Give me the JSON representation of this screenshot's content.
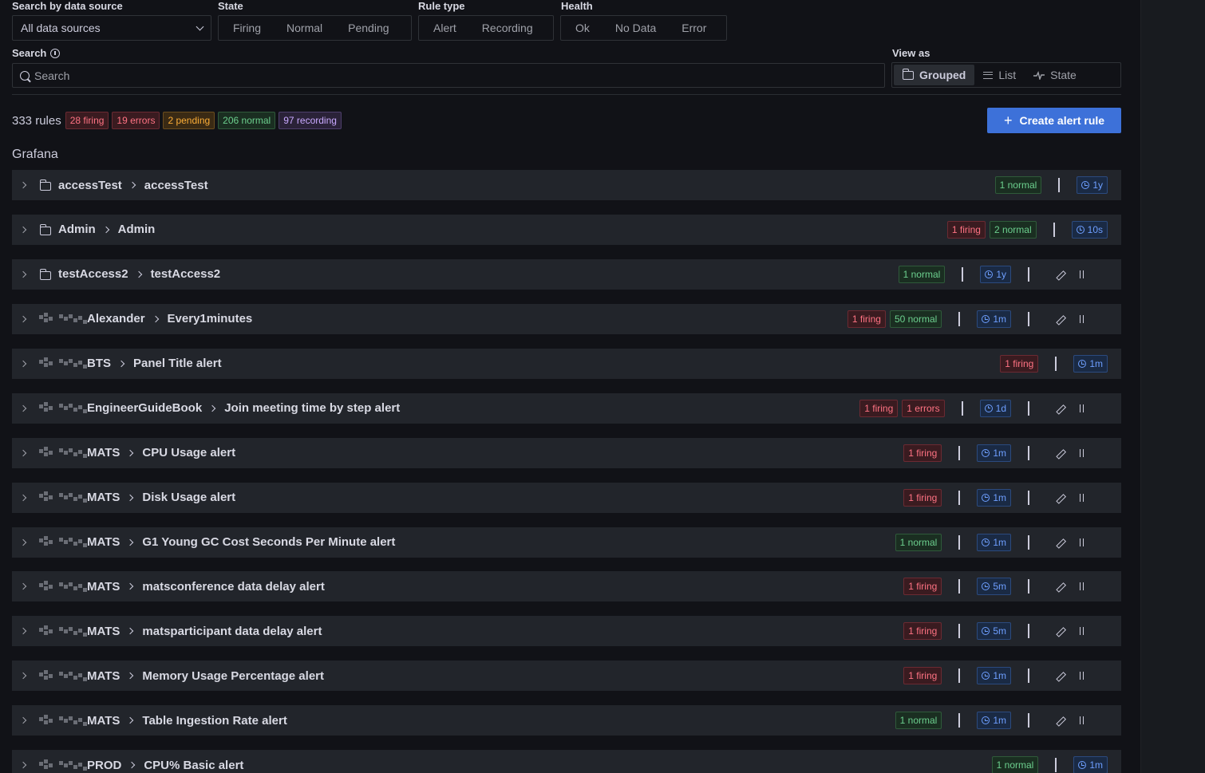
{
  "filters": {
    "datasource_label": "Search by data source",
    "datasource_value": "All data sources",
    "state_label": "State",
    "state_options": [
      "Firing",
      "Normal",
      "Pending"
    ],
    "ruletype_label": "Rule type",
    "ruletype_options": [
      "Alert",
      "Recording"
    ],
    "health_label": "Health",
    "health_options": [
      "Ok",
      "No Data",
      "Error"
    ]
  },
  "search": {
    "label": "Search",
    "placeholder": "Search"
  },
  "view": {
    "label": "View as",
    "options": [
      "Grouped",
      "List",
      "State"
    ],
    "active": "Grouped"
  },
  "summary": {
    "count": "333 rules",
    "firing": "28 firing",
    "errors": "19 errors",
    "pending": "2 pending",
    "normal": "206 normal",
    "recording": "97 recording"
  },
  "create_button": "Create alert rule",
  "section_title": "Grafana",
  "rows": [
    {
      "namespace": "accessTest",
      "group": "accessTest",
      "folder_icon": true,
      "badges": [
        {
          "type": "normal",
          "text": "1 normal"
        }
      ],
      "interval": "1y",
      "actions": false
    },
    {
      "namespace": "Admin",
      "group": "Admin",
      "folder_icon": true,
      "badges": [
        {
          "type": "firing",
          "text": "1 firing"
        },
        {
          "type": "normal",
          "text": "2 normal"
        }
      ],
      "interval": "10s",
      "actions": false
    },
    {
      "namespace": "testAccess2",
      "group": "testAccess2",
      "folder_icon": true,
      "badges": [
        {
          "type": "normal",
          "text": "1 normal"
        }
      ],
      "interval": "1y",
      "actions": true
    },
    {
      "namespace": "Alexander",
      "group": "Every1minutes",
      "folder_icon": false,
      "badges": [
        {
          "type": "firing",
          "text": "1 firing"
        },
        {
          "type": "normal",
          "text": "50 normal"
        }
      ],
      "interval": "1m",
      "actions": true
    },
    {
      "namespace": "BTS",
      "group": "Panel Title alert",
      "folder_icon": false,
      "badges": [
        {
          "type": "firing",
          "text": "1 firing"
        }
      ],
      "interval": "1m",
      "actions": false
    },
    {
      "namespace": "EngineerGuideBook",
      "group": "Join meeting time by step alert",
      "folder_icon": false,
      "badges": [
        {
          "type": "firing",
          "text": "1 firing"
        },
        {
          "type": "error",
          "text": "1 errors"
        }
      ],
      "interval": "1d",
      "actions": true
    },
    {
      "namespace": "MATS",
      "group": "CPU Usage alert",
      "folder_icon": false,
      "badges": [
        {
          "type": "firing",
          "text": "1 firing"
        }
      ],
      "interval": "1m",
      "actions": true
    },
    {
      "namespace": "MATS",
      "group": "Disk Usage alert",
      "folder_icon": false,
      "badges": [
        {
          "type": "firing",
          "text": "1 firing"
        }
      ],
      "interval": "1m",
      "actions": true
    },
    {
      "namespace": "MATS",
      "group": "G1 Young GC Cost Seconds Per Minute alert",
      "folder_icon": false,
      "badges": [
        {
          "type": "normal",
          "text": "1 normal"
        }
      ],
      "interval": "1m",
      "actions": true
    },
    {
      "namespace": "MATS",
      "group": "matsconference data delay alert",
      "folder_icon": false,
      "badges": [
        {
          "type": "firing",
          "text": "1 firing"
        }
      ],
      "interval": "5m",
      "actions": true
    },
    {
      "namespace": "MATS",
      "group": "matsparticipant data delay alert",
      "folder_icon": false,
      "badges": [
        {
          "type": "firing",
          "text": "1 firing"
        }
      ],
      "interval": "5m",
      "actions": true
    },
    {
      "namespace": "MATS",
      "group": "Memory Usage Percentage alert",
      "folder_icon": false,
      "badges": [
        {
          "type": "firing",
          "text": "1 firing"
        }
      ],
      "interval": "1m",
      "actions": true
    },
    {
      "namespace": "MATS",
      "group": "Table Ingestion Rate alert",
      "folder_icon": false,
      "badges": [
        {
          "type": "normal",
          "text": "1 normal"
        }
      ],
      "interval": "1m",
      "actions": true
    },
    {
      "namespace": "PROD",
      "group": "CPU% Basic alert",
      "folder_icon": false,
      "badges": [
        {
          "type": "normal",
          "text": "1 normal"
        }
      ],
      "interval": "1m",
      "actions": false
    }
  ]
}
